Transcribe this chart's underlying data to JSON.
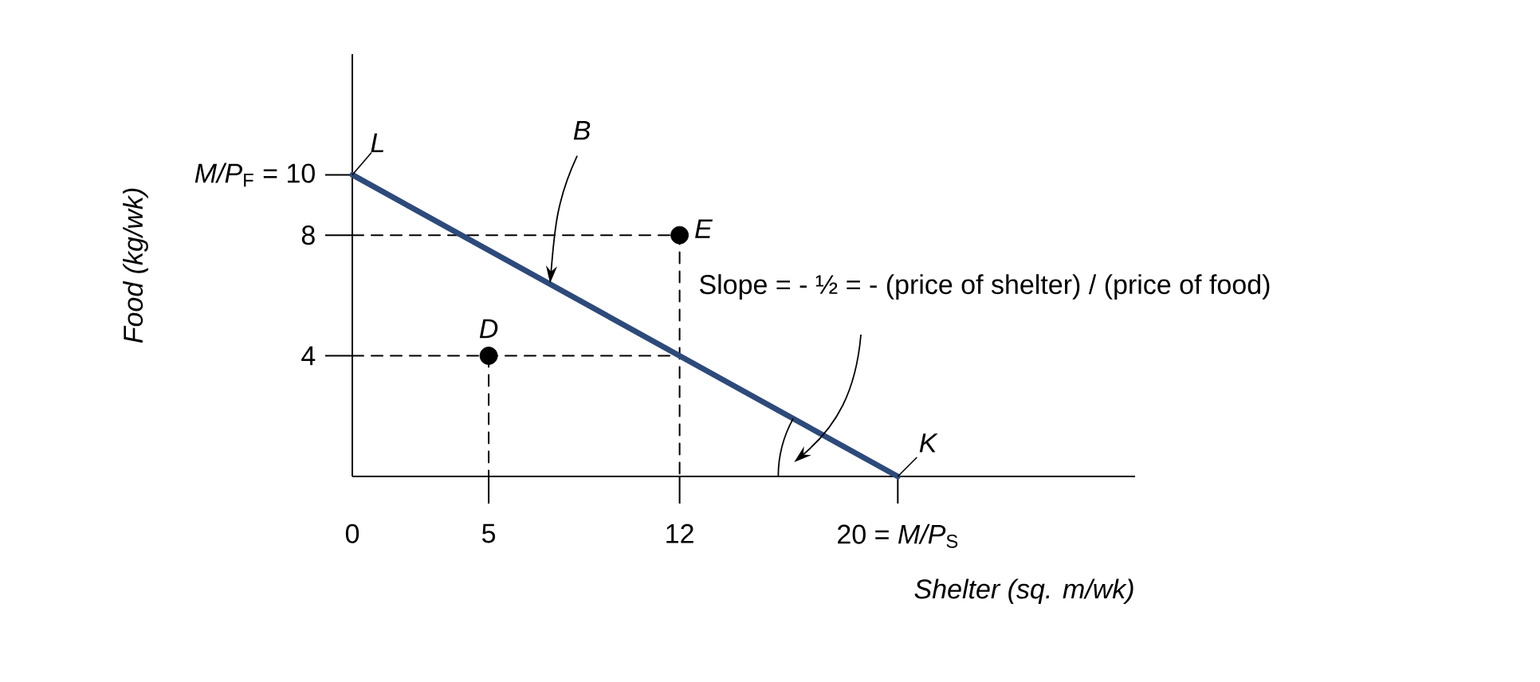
{
  "chart_data": {
    "type": "line",
    "xlabel": "Shelter (sq. m/wk)",
    "ylabel": "Food (kg/wk)",
    "xlim": [
      0,
      28.7
    ],
    "ylim": [
      0,
      14
    ],
    "xticks": [
      0,
      5,
      12,
      {
        "value": 20,
        "label": "20 = *M/P*$_{S}$"
      }
    ],
    "yticks": [
      4,
      8,
      {
        "value": 10,
        "label": "*M/P*$_{F}$ = 10"
      }
    ],
    "series": [
      {
        "color": "#000000",
        "x": [
          0,
          12,
          12
        ],
        "values": [
          8,
          8,
          0
        ],
        "marker": "none",
        "line_style": "dashed"
      },
      {
        "color": "#000000",
        "x": [
          0,
          12
        ],
        "values": [
          4,
          4
        ],
        "marker": "none",
        "line_style": "dashed"
      },
      {
        "color": "#000000",
        "x": [
          5,
          5
        ],
        "values": [
          4,
          0
        ],
        "marker": "none",
        "line_style": "dashed"
      },
      {
        "color": "#2d4a7a",
        "x": [
          0,
          20
        ],
        "values": [
          10,
          0
        ],
        "marker": "none",
        "line_style": "solid"
      },
      {
        "type": "scatter",
        "color": "#000000",
        "x": [
          5,
          12
        ],
        "values": [
          4,
          8
        ],
        "marker": "circle"
      }
    ],
    "annotations": [
      {
        "text": "L",
        "x": 0,
        "y": 10
      },
      {
        "text": "K",
        "x": 20,
        "y": 0
      },
      {
        "text": "B",
        "x": 7.25,
        "y": 6.4
      },
      {
        "text": "D",
        "x": 5,
        "y": 4
      },
      {
        "text": "E",
        "x": 12,
        "y": 8
      },
      "Slope = - ½ = - (price of shelter) / (price of food)"
    ]
  }
}
